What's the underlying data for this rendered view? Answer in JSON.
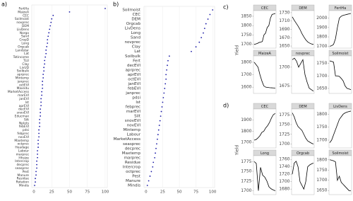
{
  "chart_data": [
    {
      "type": "dot",
      "label": "a)",
      "color": "#1a1aa6",
      "categories": [
        "FertHa",
        "MaizeA",
        "CEC",
        "Soilmoist",
        "novprec",
        "DEM",
        "LivDens",
        "Norgo",
        "Sand",
        "CropD",
        "Long",
        "Orgcab",
        "Landstar",
        "Lat",
        "Totincome",
        "TLU",
        "Clay",
        "LivUD",
        "Soilbulk",
        "aprprec",
        "Mintemp",
        "janprec",
        "octEVI",
        "Maxndu",
        "MarketAccess",
        "marEVI",
        "janEVI",
        "lst",
        "aprEVI",
        "decEVI",
        "snovEVI",
        "Educmax",
        "Silt",
        "Nplots",
        "febEVI",
        "pdsi",
        "febprec",
        "novEVI",
        "Maxtemp",
        "octprec",
        "Headage",
        "Labour",
        "marprec",
        "Hhsize",
        "Intercrop",
        "decprec",
        "seasprec",
        "Pest",
        "Manure",
        "Residue",
        "Rotation",
        "Mindis"
      ],
      "values": [
        100,
        50,
        27,
        25,
        24,
        23,
        22,
        21,
        20,
        19,
        19,
        18,
        17,
        17,
        16,
        15,
        15,
        14,
        14,
        13,
        13,
        12,
        12,
        12,
        11,
        11,
        10,
        10,
        10,
        9,
        9,
        9,
        8,
        8,
        8,
        7,
        7,
        7,
        6,
        6,
        6,
        5,
        5,
        5,
        4,
        4,
        4,
        3,
        3,
        2,
        2,
        1
      ],
      "xlim": [
        -3,
        103
      ],
      "xticks": [
        0,
        25,
        50,
        75,
        100
      ]
    },
    {
      "type": "dot",
      "label": "b)",
      "color": "#1a1aa6",
      "categories": [
        "Soilmoist",
        "CEC",
        "DEM",
        "Orgcab",
        "LivDens",
        "Long",
        "Sand",
        "novprec",
        "Clay",
        "Lat",
        "Soilbulk",
        "Fert",
        "decEVI",
        "aprprec",
        "aprEVI",
        "octEVI",
        "janEVI",
        "febEVI",
        "janprec",
        "pdsi",
        "lst",
        "febprec",
        "marEVI",
        "Silt",
        "snovEVI",
        "novEVI",
        "Mintemp",
        "Labour",
        "MarketAccess",
        "seasprec",
        "decprec",
        "Maxtemp",
        "marprec",
        "Residue",
        "Intercrop",
        "octprec",
        "Pest",
        "Manure",
        "Mindis"
      ],
      "values": [
        100,
        96,
        93,
        90,
        88,
        86,
        83,
        80,
        75,
        68,
        35,
        33,
        32,
        31,
        30,
        30,
        29,
        28,
        27,
        26,
        25,
        24,
        23,
        22,
        21,
        20,
        19,
        18,
        17,
        16,
        15,
        14,
        13,
        11,
        10,
        8,
        6,
        4,
        2
      ],
      "xlim": [
        -3,
        103
      ],
      "xticks": [
        0,
        25,
        50,
        75,
        100
      ]
    },
    {
      "type": "facet-line",
      "label": "c)",
      "y_label": "Yield",
      "color": "#000000",
      "panels": [
        {
          "title": "CEC",
          "values": [
            1700,
            1702,
            1705,
            1710,
            1712,
            1715,
            1750,
            1760,
            1790,
            1800,
            1840,
            1860,
            1862,
            1865
          ],
          "ylim": [
            1680,
            1880
          ],
          "yticks": [
            1700,
            1750,
            1800,
            1850
          ]
        },
        {
          "title": "DEM",
          "values": [
            1720,
            1712,
            1705,
            1698,
            1690,
            1680,
            1672,
            1665,
            1660,
            1657,
            1655,
            1654
          ],
          "ylim": [
            1645,
            1735
          ],
          "yticks": [
            1650,
            1670,
            1690,
            1710,
            1730
          ]
        },
        {
          "title": "FertHa",
          "values": [
            1700,
            1705,
            1720,
            1780,
            1900,
            2000,
            2020,
            2030,
            2035,
            2040,
            2045,
            2050
          ],
          "ylim": [
            1680,
            2080
          ],
          "yticks": [
            1700,
            1800,
            1900,
            2000
          ]
        },
        {
          "title": "MaizeA",
          "values": [
            1800,
            1780,
            1760,
            1700,
            1650,
            1610,
            1600,
            1598,
            1596,
            1595,
            1594,
            1593
          ],
          "ylim": [
            1550,
            1850
          ],
          "yticks": [
            1600,
            1700,
            1800
          ]
        },
        {
          "title": "novprec",
          "values": [
            1710,
            1712,
            1708,
            1700,
            1705,
            1710,
            1690,
            1680,
            1672,
            1670,
            1668
          ],
          "ylim": [
            1665,
            1715
          ],
          "yticks": [
            1675,
            1700
          ]
        },
        {
          "title": "Soilmoist",
          "values": [
            1760,
            1758,
            1755,
            1700,
            1700,
            1698,
            1690,
            1680,
            1660,
            1650,
            1648,
            1645
          ],
          "ylim": [
            1630,
            1780
          ],
          "yticks": [
            1650,
            1700,
            1750
          ]
        }
      ]
    },
    {
      "type": "facet-line",
      "label": "d)",
      "y_label": "Yield",
      "color": "#000000",
      "panels": [
        {
          "title": "CEC",
          "values": [
            1720,
            1725,
            1740,
            1760,
            1790,
            1800,
            1830,
            1850,
            1880,
            1920,
            1950,
            1960
          ],
          "ylim": [
            1650,
            2000
          ],
          "yticks": [
            1700,
            1800,
            1900
          ]
        },
        {
          "title": "DEM",
          "values": [
            1780,
            1770,
            1755,
            1745,
            1740,
            1735,
            1725,
            1715,
            1708,
            1705,
            1702,
            1700
          ],
          "ylim": [
            1690,
            1790
          ],
          "yticks": [
            1700,
            1725,
            1750,
            1775
          ]
        },
        {
          "title": "LivDens",
          "values": [
            1690,
            1700,
            1720,
            1740,
            1760,
            1780,
            1790,
            1800,
            1805,
            1808,
            1810,
            1812
          ],
          "ylim": [
            1670,
            1820
          ],
          "yticks": [
            1700,
            1750,
            1800
          ]
        },
        {
          "title": "Long",
          "values": [
            1775,
            1770,
            1700,
            1760,
            1740,
            1735,
            1725,
            1710,
            1705,
            1702,
            1700
          ],
          "ylim": [
            1690,
            1790
          ],
          "yticks": [
            1700,
            1725,
            1750,
            1775
          ]
        },
        {
          "title": "Orgcab",
          "values": [
            1720,
            1750,
            1755,
            1740,
            1700,
            1690,
            1680,
            1700,
            1740,
            1745,
            1748,
            1750
          ],
          "ylim": [
            1665,
            1770
          ],
          "yticks": [
            1680,
            1700,
            1720,
            1740,
            1760
          ]
        },
        {
          "title": "Soilmoist",
          "values": [
            1800,
            1798,
            1795,
            1790,
            1700,
            1720,
            1690,
            1680,
            1670,
            1660,
            1650,
            1648
          ],
          "ylim": [
            1630,
            1820
          ],
          "yticks": [
            1650,
            1700,
            1750,
            1800
          ]
        }
      ]
    }
  ]
}
